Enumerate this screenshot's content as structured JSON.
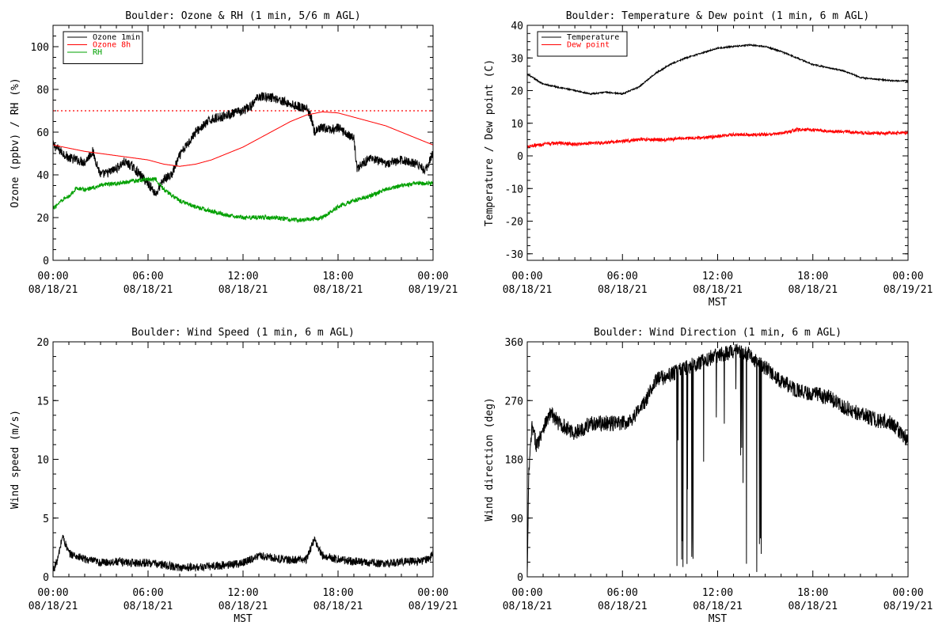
{
  "chart_data": [
    {
      "type": "line",
      "title": "Boulder: Ozone & RH (1 min, 5/6 m AGL)",
      "xlabel": "",
      "ylabel": "Ozone (ppbv) / RH (%)",
      "xlim": [
        "08/18/21 00:00",
        "08/19/21 00:00"
      ],
      "ylim": [
        0,
        110
      ],
      "yticks": [
        0,
        20,
        40,
        60,
        80,
        100
      ],
      "xtick_labels": [
        {
          "time": "00:00",
          "date": "08/18/21"
        },
        {
          "time": "06:00",
          "date": "08/18/21"
        },
        {
          "time": "12:00",
          "date": "08/18/21"
        },
        {
          "time": "18:00",
          "date": "08/18/21"
        },
        {
          "time": "00:00",
          "date": "08/19/21"
        }
      ],
      "legend_position": "top-left",
      "reference_line": {
        "y": 70,
        "color": "#ff0000",
        "style": "dotted"
      },
      "series": [
        {
          "name": "Ozone 1min",
          "color": "#000000",
          "noise": 2.2,
          "x_hours": [
            0,
            1,
            2,
            2.5,
            3,
            3.5,
            4,
            4.5,
            5,
            6,
            6.5,
            7,
            7.5,
            8,
            9,
            10,
            11,
            12,
            12.5,
            13,
            14,
            15,
            16,
            16.3,
            16.5,
            17,
            17.5,
            18,
            19,
            19.2,
            20,
            21,
            22,
            23,
            23.5,
            24
          ],
          "values": [
            54,
            48,
            46,
            51,
            40,
            41,
            43,
            46,
            44,
            36,
            31,
            38,
            40,
            49,
            60,
            66,
            68,
            70,
            72,
            77,
            76,
            73,
            71,
            67,
            60,
            62,
            61,
            62,
            57,
            43,
            48,
            45,
            47,
            45,
            42,
            50
          ]
        },
        {
          "name": "Ozone 8h",
          "color": "#ff0000",
          "noise": 0,
          "x_hours": [
            0,
            2,
            4,
            6,
            7,
            8,
            9,
            10,
            11,
            12,
            13,
            14,
            15,
            16,
            17,
            18,
            19,
            20,
            21,
            22,
            23,
            24
          ],
          "values": [
            54,
            51,
            49,
            47,
            45,
            44,
            45,
            47,
            50,
            53,
            57,
            61,
            65,
            68,
            69.5,
            69,
            67,
            65,
            63,
            60,
            57,
            54
          ]
        },
        {
          "name": "RH",
          "color": "#00a000",
          "noise": 1.0,
          "x_hours": [
            0,
            0.5,
            1,
            1.5,
            2,
            3,
            4,
            5,
            6,
            6.5,
            7,
            8,
            9,
            10,
            11,
            12,
            13,
            14,
            15,
            16,
            17,
            18,
            19,
            20,
            21,
            22,
            23,
            24
          ],
          "values": [
            24,
            28,
            30,
            34,
            33,
            35,
            36,
            37,
            38,
            38,
            33,
            28,
            25,
            23,
            21,
            20,
            20,
            20,
            19,
            19,
            20,
            25,
            28,
            30,
            33,
            35,
            36,
            36
          ]
        }
      ]
    },
    {
      "type": "line",
      "title": "Boulder: Temperature & Dew point (1 min, 6 m AGL)",
      "xlabel": "MST",
      "ylabel": "Temperature / Dew point (C)",
      "xlim": [
        "08/18/21 00:00",
        "08/19/21 00:00"
      ],
      "ylim": [
        -32,
        40
      ],
      "yticks": [
        -30,
        -20,
        -10,
        0,
        10,
        20,
        30,
        40
      ],
      "xtick_labels": [
        {
          "time": "00:00",
          "date": "08/18/21"
        },
        {
          "time": "06:00",
          "date": "08/18/21"
        },
        {
          "time": "12:00",
          "date": "08/18/21"
        },
        {
          "time": "18:00",
          "date": "08/18/21"
        },
        {
          "time": "00:00",
          "date": "08/19/21"
        }
      ],
      "legend_position": "top-left",
      "series": [
        {
          "name": "Temperature",
          "color": "#000000",
          "noise": 0.2,
          "x_hours": [
            0,
            1,
            2,
            3,
            4,
            5,
            6,
            7,
            8,
            9,
            10,
            11,
            12,
            13,
            14,
            15,
            16,
            17,
            18,
            19,
            20,
            21,
            22,
            23,
            24
          ],
          "values": [
            25,
            22,
            21,
            20,
            19,
            19.5,
            19,
            21,
            25,
            28,
            30,
            31.5,
            33,
            33.5,
            34,
            33.5,
            32,
            30,
            28,
            27,
            26,
            24,
            23.5,
            23,
            23
          ]
        },
        {
          "name": "Dew point",
          "color": "#ff0000",
          "noise": 0.5,
          "x_hours": [
            0,
            1,
            2,
            3,
            4,
            5,
            6,
            7,
            8,
            9,
            10,
            11,
            12,
            13,
            14,
            15,
            16,
            17,
            18,
            19,
            20,
            21,
            22,
            23,
            24
          ],
          "values": [
            3,
            3.5,
            4,
            3.5,
            4,
            4,
            4.5,
            5,
            5,
            5,
            5.5,
            5.5,
            6,
            6.5,
            6.5,
            6.5,
            7,
            8,
            8,
            7.5,
            7.5,
            7,
            7,
            7,
            7
          ]
        }
      ]
    },
    {
      "type": "line",
      "title": "Boulder: Wind Speed (1 min, 6 m AGL)",
      "xlabel": "MST",
      "ylabel": "Wind speed (m/s)",
      "xlim": [
        "08/18/21 00:00",
        "08/19/21 00:00"
      ],
      "ylim": [
        0,
        20
      ],
      "yticks": [
        0,
        5,
        10,
        15,
        20
      ],
      "xtick_labels": [
        {
          "time": "00:00",
          "date": "08/18/21"
        },
        {
          "time": "06:00",
          "date": "08/18/21"
        },
        {
          "time": "12:00",
          "date": "08/18/21"
        },
        {
          "time": "18:00",
          "date": "08/18/21"
        },
        {
          "time": "00:00",
          "date": "08/19/21"
        }
      ],
      "series": [
        {
          "name": "",
          "color": "#000000",
          "noise": 0.35,
          "x_hours": [
            0,
            0.3,
            0.6,
            1,
            2,
            3,
            4,
            5,
            6,
            7,
            8,
            9,
            10,
            11,
            12,
            13,
            14,
            15,
            16,
            16.5,
            17,
            18,
            19,
            20,
            21,
            22,
            23,
            23.8,
            24
          ],
          "values": [
            0.5,
            1.5,
            3.5,
            2,
            1.5,
            1.2,
            1.3,
            1.2,
            1.2,
            1,
            0.8,
            0.8,
            0.9,
            1.0,
            1.2,
            1.8,
            1.6,
            1.4,
            1.5,
            3.2,
            1.8,
            1.5,
            1.3,
            1.2,
            1.1,
            1.3,
            1.3,
            1.5,
            2.3
          ]
        }
      ]
    },
    {
      "type": "line",
      "title": "Boulder: Wind Direction (1 min, 6 m AGL)",
      "xlabel": "MST",
      "ylabel": "Wind direction (deg)",
      "xlim": [
        "08/18/21 00:00",
        "08/19/21 00:00"
      ],
      "ylim": [
        0,
        360
      ],
      "yticks": [
        0,
        90,
        180,
        270,
        360
      ],
      "xtick_labels": [
        {
          "time": "00:00",
          "date": "08/18/21"
        },
        {
          "time": "06:00",
          "date": "08/18/21"
        },
        {
          "time": "12:00",
          "date": "08/18/21"
        },
        {
          "time": "18:00",
          "date": "08/18/21"
        },
        {
          "time": "00:00",
          "date": "08/19/21"
        }
      ],
      "series": [
        {
          "name": "",
          "color": "#000000",
          "noise": 12,
          "x_hours": [
            0,
            0.1,
            0.3,
            0.6,
            1,
            1.5,
            2,
            3,
            4,
            5,
            6,
            6.5,
            7,
            7.5,
            8,
            9,
            10,
            11,
            12,
            13,
            14,
            15,
            16,
            17,
            18,
            19,
            20,
            21,
            22,
            23,
            24
          ],
          "values": [
            0,
            160,
            230,
            200,
            230,
            250,
            235,
            220,
            235,
            235,
            235,
            240,
            255,
            270,
            300,
            310,
            320,
            330,
            340,
            345,
            340,
            320,
            300,
            285,
            280,
            275,
            260,
            250,
            240,
            235,
            210
          ]
        }
      ],
      "wild_swing_window_hours": [
        7.5,
        15
      ]
    }
  ]
}
